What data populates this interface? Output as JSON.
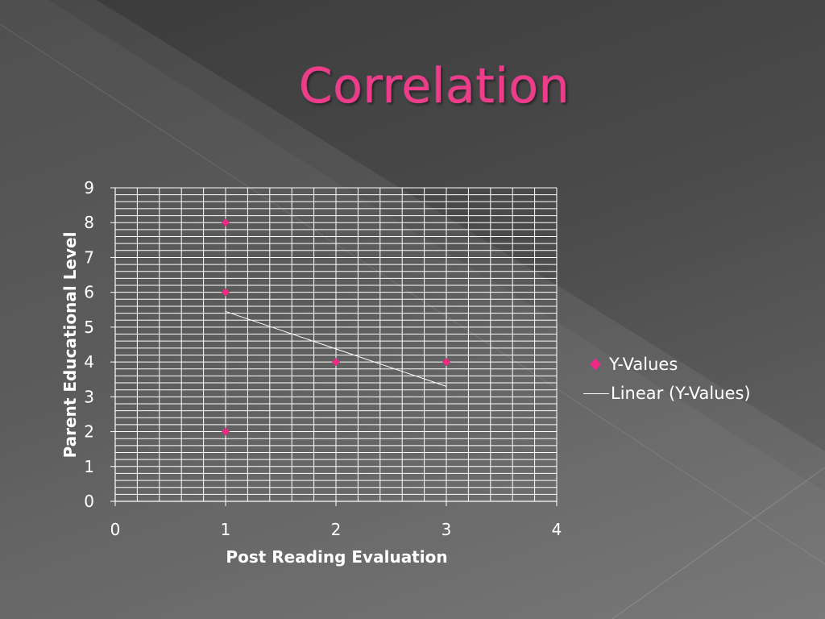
{
  "slide": {
    "title": "Correlation"
  },
  "chart_data": {
    "type": "scatter",
    "xlabel": "Post Reading Evaluation",
    "ylabel": "Parent Educational Level",
    "xlim": [
      0,
      4
    ],
    "ylim": [
      0,
      9
    ],
    "x_ticks": [
      "0",
      "1",
      "2",
      "3",
      "4"
    ],
    "y_ticks": [
      "0",
      "1",
      "2",
      "3",
      "4",
      "5",
      "6",
      "7",
      "8",
      "9"
    ],
    "grid": true,
    "legend": "right",
    "series": [
      {
        "name": "Y-Values",
        "marker": "diamond",
        "color": "#ee2a84",
        "points": [
          {
            "x": 1,
            "y": 8
          },
          {
            "x": 1,
            "y": 6
          },
          {
            "x": 1,
            "y": 2
          },
          {
            "x": 2,
            "y": 4
          },
          {
            "x": 3,
            "y": 4
          }
        ]
      }
    ],
    "trendline": {
      "name": "Linear (Y-Values)",
      "color": "#ffffff",
      "from": {
        "x": 1,
        "y": 5.45
      },
      "to": {
        "x": 3,
        "y": 3.3
      }
    }
  }
}
